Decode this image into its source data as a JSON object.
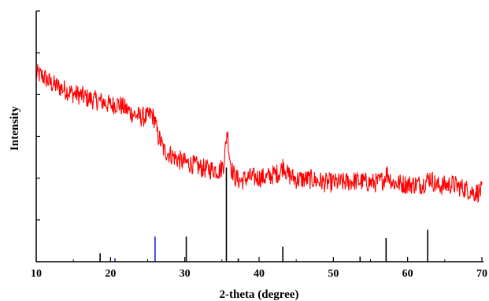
{
  "chart_data": {
    "type": "line",
    "xlabel": "2-theta (degree)",
    "ylabel": "Intensity",
    "xlim": [
      10,
      70
    ],
    "ylim": [
      0,
      100
    ],
    "x_ticks": [
      10,
      20,
      30,
      40,
      50,
      60,
      70
    ],
    "y_ticks": [
      0,
      20,
      40,
      60,
      80,
      100
    ],
    "grid": false,
    "legend": "none",
    "series": [
      {
        "kind": "line",
        "color": "#ff0000",
        "x": [
          10,
          11,
          12,
          13,
          14,
          15,
          16,
          17,
          18,
          19,
          20,
          21,
          22,
          23,
          24,
          25,
          25.5,
          26,
          26.3,
          26.8,
          27.2,
          28,
          29,
          30,
          31,
          32,
          33,
          34,
          34.7,
          35.2,
          35.5,
          35.7,
          36,
          36.3,
          36.8,
          37.5,
          38.5,
          40,
          41,
          42,
          42.8,
          43.3,
          43.8,
          45,
          47,
          49,
          51,
          53,
          55,
          56,
          56.8,
          57.2,
          58,
          60,
          62,
          63,
          64,
          66,
          68,
          69,
          70
        ],
        "y": [
          112,
          110,
          106,
          104,
          102,
          100,
          99,
          97,
          96,
          95,
          93,
          94,
          91,
          88,
          86,
          86,
          88,
          84,
          76,
          71,
          66,
          64,
          61,
          59,
          58,
          56,
          55,
          55,
          54,
          58,
          68,
          79,
          64,
          55,
          50,
          48,
          50,
          50,
          50,
          52,
          53,
          58,
          52,
          49,
          49,
          47,
          47,
          48,
          47,
          47,
          49,
          53,
          47,
          46,
          46,
          50,
          45,
          46,
          43,
          41,
          42
        ]
      },
      {
        "kind": "stick",
        "color": "#000000",
        "x": [
          18.6,
          30.2,
          35.6,
          37.2,
          43.2,
          53.6,
          57.1,
          62.7
        ],
        "y": [
          5,
          15,
          56,
          2,
          9,
          3,
          14,
          19
        ]
      },
      {
        "kind": "stick",
        "color": "#1a2bd0",
        "x": [
          20.6,
          26.0
        ],
        "y": [
          2,
          15
        ]
      }
    ]
  }
}
